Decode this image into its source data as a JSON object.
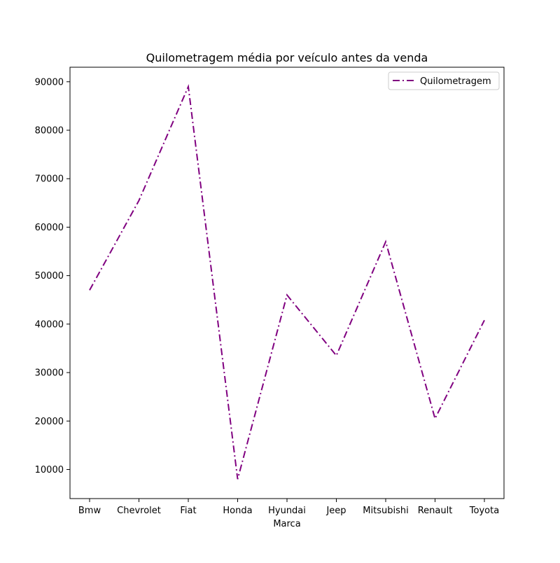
{
  "chart_data": {
    "type": "line",
    "title": "Quilometragem média por veículo antes da venda",
    "xlabel": "Marca",
    "ylabel": "",
    "categories": [
      "Bmw",
      "Chevrolet",
      "Fiat",
      "Honda",
      "Hyundai",
      "Jeep",
      "Mitsubishi",
      "Renault",
      "Toyota"
    ],
    "series": [
      {
        "name": "Quilometragem",
        "values": [
          47000,
          65500,
          89000,
          8000,
          46000,
          33500,
          57000,
          20500,
          40800
        ],
        "color": "#800080",
        "linestyle": "dash-dot"
      }
    ],
    "yticks": [
      10000,
      20000,
      30000,
      40000,
      50000,
      60000,
      70000,
      80000,
      90000
    ],
    "ylim": [
      4000,
      93000
    ],
    "legend": "top-right",
    "grid": false
  }
}
